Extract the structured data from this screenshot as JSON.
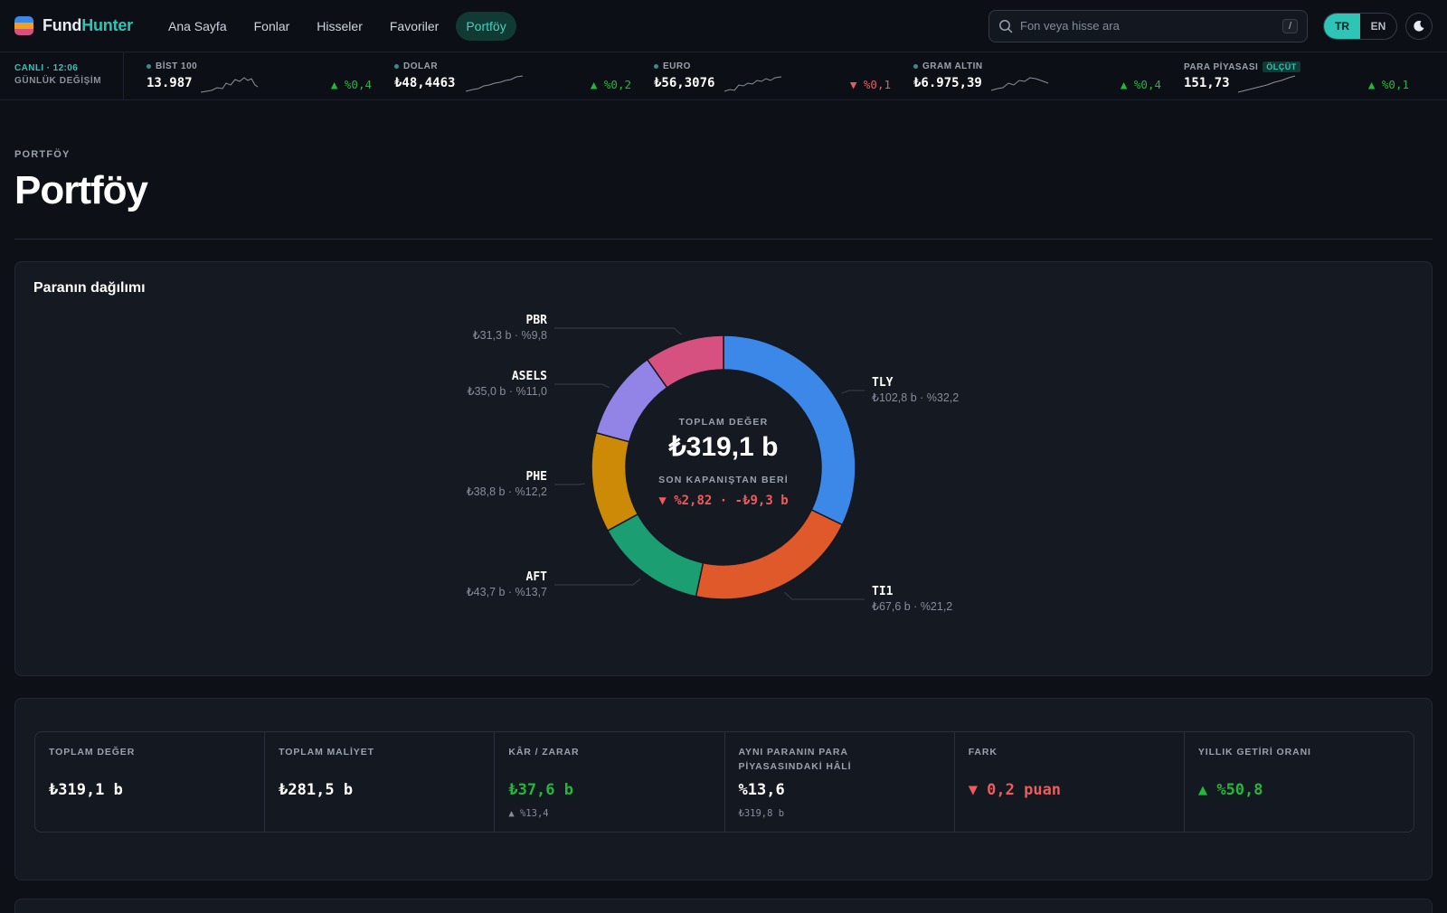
{
  "brand": {
    "part1": "Fund",
    "part2": "Hunter"
  },
  "nav": {
    "items": [
      {
        "label": "Ana Sayfa"
      },
      {
        "label": "Fonlar"
      },
      {
        "label": "Hisseler"
      },
      {
        "label": "Favoriler"
      },
      {
        "label": "Portföy",
        "active": true
      }
    ]
  },
  "search": {
    "placeholder": "Fon veya hisse ara",
    "shortcut": "/",
    "icon": "search-icon"
  },
  "language": {
    "options": [
      "TR",
      "EN"
    ],
    "selected": "TR"
  },
  "theme_icon": "moon-icon",
  "ticker": {
    "live_label": "CANLI · 12:06",
    "subtitle": "GÜNLÜK DEĞİŞİM",
    "items": [
      {
        "name": "BİST 100",
        "value": "13.987",
        "change": "▲ %0,4",
        "direction": "up",
        "badge": ""
      },
      {
        "name": "DOLAR",
        "value": "₺48,4463",
        "change": "▲ %0,2",
        "direction": "up",
        "badge": ""
      },
      {
        "name": "EURO",
        "value": "₺56,3076",
        "change": "▼ %0,1",
        "direction": "down",
        "badge": ""
      },
      {
        "name": "GRAM ALTIN",
        "value": "₺6.975,39",
        "change": "▲ %0,4",
        "direction": "up",
        "badge": ""
      },
      {
        "name": "PARA PİYASASI",
        "value": "151,73",
        "change": "▲ %0,1",
        "direction": "up",
        "badge": "ÖLÇÜT"
      }
    ]
  },
  "page": {
    "breadcrumb": "PORTFÖY",
    "title": "Portföy"
  },
  "distribution": {
    "title": "Paranın dağılımı",
    "center_label": "TOPLAM DEĞER",
    "center_value": "₺319,1 b",
    "since_label": "SON KAPANIŞTAN BERİ",
    "since_value": "▼ %2,82 · -₺9,3 b"
  },
  "chart_data": {
    "type": "pie",
    "title": "Paranın dağılımı",
    "slices": [
      {
        "label": "TLY",
        "amount": "₺102,8 b",
        "percent": 32.2,
        "display": "₺102,8 b · %32,2",
        "color": "#3b88e8"
      },
      {
        "label": "TI1",
        "amount": "₺67,6 b",
        "percent": 21.2,
        "display": "₺67,6 b · %21,2",
        "color": "#e0592a"
      },
      {
        "label": "AFT",
        "amount": "₺43,7 b",
        "percent": 13.7,
        "display": "₺43,7 b · %13,7",
        "color": "#1a9e72"
      },
      {
        "label": "PHE",
        "amount": "₺38,8 b",
        "percent": 12.2,
        "display": "₺38,8 b · %12,2",
        "color": "#cc8a06"
      },
      {
        "label": "ASELS",
        "amount": "₺35,0 b",
        "percent": 11.0,
        "display": "₺35,0 b · %11,0",
        "color": "#9283e6"
      },
      {
        "label": "PBR",
        "amount": "₺31,3 b",
        "percent": 9.8,
        "display": "₺31,3 b · %9,8",
        "color": "#d6517f"
      }
    ]
  },
  "stats": [
    {
      "label": "TOPLAM DEĞER",
      "value": "₺319,1 b",
      "sub": "",
      "tone": "neutral"
    },
    {
      "label": "TOPLAM MALİYET",
      "value": "₺281,5 b",
      "sub": "",
      "tone": "neutral"
    },
    {
      "label": "KÂR / ZARAR",
      "value": "₺37,6 b",
      "sub": "▲ %13,4",
      "tone": "up"
    },
    {
      "label": "AYNI PARANIN PARA PİYASASINDAKİ HÂLİ",
      "value": "%13,6",
      "sub": "₺319,8 b",
      "tone": "neutral"
    },
    {
      "label": "FARK",
      "value": "▼ 0,2 puan",
      "sub": "",
      "tone": "down"
    },
    {
      "label": "YILLIK GETİRİ ORANI",
      "value": "▲ %50,8",
      "sub": "",
      "tone": "up"
    }
  ],
  "colors": {
    "accent": "#2ec4b6",
    "up": "#22b83a",
    "down": "#ef5b5b",
    "background": "#0d1017",
    "card": "#151922"
  }
}
